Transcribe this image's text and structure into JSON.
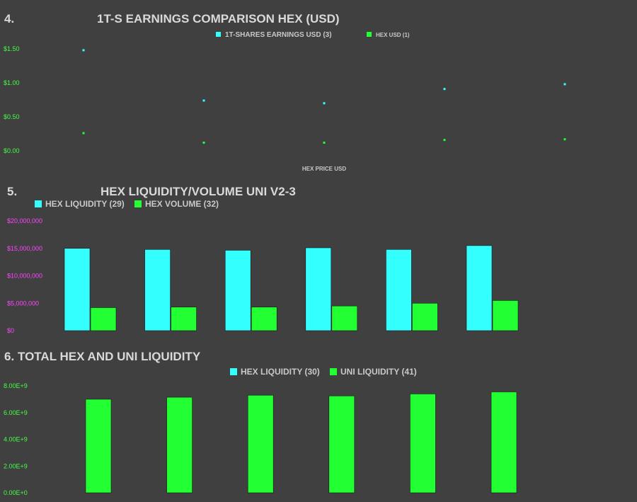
{
  "colors": {
    "background": "#404040",
    "cyan": "#33ffff",
    "green": "#22ff33",
    "tick_green": "#44ff44",
    "tick_magenta": "#ff44ff",
    "title": "#d9d9d9"
  },
  "chart_data": [
    {
      "type": "scatter",
      "number": "4.",
      "title": "1T-S EARNINGS COMPARISON HEX (USD)",
      "xlabel": "HEX PRICE USD",
      "ylabel": "",
      "ylim": [
        0,
        1.5
      ],
      "yticks": [
        "$1.50",
        "$1.00",
        "$0.50",
        "$0.00"
      ],
      "grid": false,
      "legend_position": "top",
      "series": [
        {
          "name": "1T-SHARES  EARNINGS USD (3)",
          "color": "#33ffff",
          "values": [
            1.48,
            0.74,
            0.7,
            0.91,
            0.98
          ]
        },
        {
          "name": "HEX USD (1)",
          "color": "#22ff33",
          "values": [
            0.26,
            0.12,
            0.12,
            0.16,
            0.17
          ]
        }
      ]
    },
    {
      "type": "bar",
      "number": "5.",
      "title": "HEX  LIQUIDITY/VOLUME UNI V2-3",
      "xlabel": "",
      "ylabel": "",
      "ylim": [
        0,
        20000000
      ],
      "yticks": [
        "$20,000,000",
        "$15,000,000",
        "$10,000,000",
        "$5,000,000",
        "$0"
      ],
      "grid": false,
      "legend_position": "top-left",
      "series": [
        {
          "name": "HEX LIQUIDITY (29)",
          "color": "#33ffff",
          "values": [
            15000000,
            14800000,
            14650000,
            15100000,
            14800000,
            15500000
          ]
        },
        {
          "name": "HEX VOLUME (32)",
          "color": "#22ff33",
          "values": [
            4200000,
            4300000,
            4300000,
            4500000,
            5000000,
            5500000
          ]
        }
      ]
    },
    {
      "type": "bar",
      "number": "6.",
      "title": "TOTAL HEX AND UNI LIQUIDITY",
      "xlabel": "",
      "ylabel": "",
      "ylim": [
        0,
        8000000000
      ],
      "yticks": [
        "8.00E+9",
        "6.00E+9",
        "4.00E+9",
        "2.00E+9",
        "0.00E+0"
      ],
      "grid": false,
      "legend_position": "top",
      "legend": [
        {
          "name": "HEX LIQUIDITY (30)",
          "color": "#33ffff"
        },
        {
          "name": "UNI LIQUIDITY (41)",
          "color": "#22ff33"
        }
      ],
      "series": [
        {
          "name": "UNI LIQUIDITY (41)",
          "color": "#22ff33",
          "values": [
            7000000000,
            7150000000,
            7300000000,
            7250000000,
            7400000000,
            7550000000
          ]
        }
      ]
    }
  ]
}
